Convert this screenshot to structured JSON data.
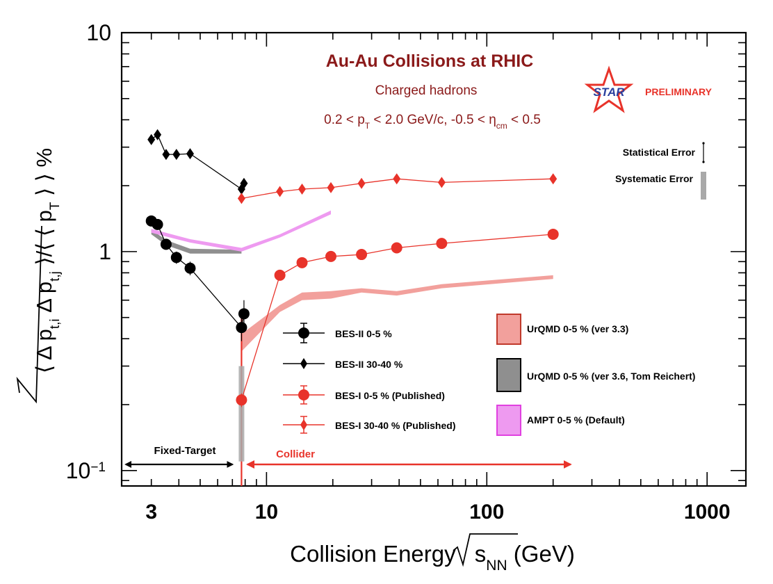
{
  "chart_data": {
    "type": "scatter",
    "title": "Au-Au Collisions at RHIC",
    "subtitle": "Charged hadrons",
    "cuts": {
      "a": "0.2 < p",
      "b": "T",
      "c": " < 2.0 GeV/c, -0.5 < η",
      "d": "cm",
      "e": " < 0.5"
    },
    "xlabel": {
      "main": "Collision Energy ",
      "sym": "s",
      "sub": "NN",
      "unit": " (GeV)"
    },
    "ylabel": {
      "p1": "⟨ Δ p",
      "p1s": "t,i",
      "p2": " Δ p",
      "p2s": "t,j",
      "p3": " ⟩/⟨ ⟨ p",
      "p3s": "T",
      "p4": " ⟩ ⟩ %"
    },
    "x_scale": "log",
    "y_scale": "log",
    "xlim": [
      2.2,
      1500
    ],
    "ylim": [
      0.085,
      10
    ],
    "x_ticks": [
      {
        "v": 3,
        "label": "3"
      },
      {
        "v": 10,
        "label": "10"
      },
      {
        "v": 100,
        "label": "100"
      },
      {
        "v": 1000,
        "label": "1000"
      }
    ],
    "y_ticks": [
      {
        "v": 10,
        "base": "10",
        "exp": ""
      },
      {
        "v": 1,
        "base": "1",
        "exp": ""
      },
      {
        "v": 0.1,
        "base": "10",
        "exp": "−1"
      }
    ],
    "colors": {
      "black": "#000000",
      "red": "#e8332a",
      "urqmd33": "#f2a09c",
      "urqmd36": "#8f8f8f",
      "ampt": "#ee9af0",
      "title": "#8b1a1a"
    },
    "series": [
      {
        "name": "BES-II 0-5 %",
        "marker": "circle",
        "color": "#000000",
        "x": [
          3.0,
          3.2,
          3.5,
          3.9,
          4.5,
          7.7,
          7.9
        ],
        "y": [
          1.38,
          1.33,
          1.08,
          0.94,
          0.84,
          0.45,
          0.52
        ],
        "err": [
          0.05,
          0.05,
          0.06,
          0.06,
          0.06,
          0.06,
          0.08
        ]
      },
      {
        "name": "BES-II 30-40 %",
        "marker": "diamond",
        "color": "#000000",
        "x": [
          3.0,
          3.2,
          3.5,
          3.9,
          4.5,
          7.7,
          7.9
        ],
        "y": [
          3.25,
          3.42,
          2.78,
          2.78,
          2.8,
          1.93,
          2.05
        ],
        "err": [
          0.08,
          0.08,
          0.08,
          0.08,
          0.08,
          0.08,
          0.08
        ]
      },
      {
        "name": "BES-I 0-5 % (Published)",
        "marker": "circle",
        "color": "#e8332a",
        "x": [
          7.7,
          11.5,
          14.5,
          19.6,
          27,
          39,
          62.4,
          200
        ],
        "y": [
          0.21,
          0.78,
          0.89,
          0.95,
          0.97,
          1.04,
          1.09,
          1.2
        ],
        "err": [
          0.015,
          0.03,
          0.03,
          0.03,
          0.03,
          0.03,
          0.03,
          0.03
        ]
      },
      {
        "name": "BES-I 30-40 % (Published)",
        "marker": "diamond",
        "color": "#e8332a",
        "x": [
          7.7,
          11.5,
          14.5,
          19.6,
          27,
          39,
          62.4,
          200
        ],
        "y": [
          1.75,
          1.88,
          1.93,
          1.96,
          2.05,
          2.15,
          2.07,
          2.15
        ],
        "err": [
          0.03,
          0.03,
          0.03,
          0.03,
          0.03,
          0.03,
          0.03,
          0.03
        ]
      }
    ],
    "bands": [
      {
        "name": "UrQMD 0-5 % (ver 3.3)",
        "color": "#f2a09c",
        "stroke": "#c0392b",
        "x": [
          7.7,
          11.5,
          14.5,
          19.6,
          27,
          39,
          62.4,
          200
        ],
        "lo": [
          0.35,
          0.53,
          0.6,
          0.61,
          0.65,
          0.63,
          0.68,
          0.75
        ],
        "hi": [
          0.42,
          0.57,
          0.65,
          0.66,
          0.68,
          0.66,
          0.71,
          0.78
        ]
      },
      {
        "name": "UrQMD 0-5 % (ver 3.6, Tom Reichert)",
        "color": "#8f8f8f",
        "stroke": "#000000",
        "x": [
          3.0,
          3.5,
          4.5,
          7.7
        ],
        "lo": [
          1.2,
          1.07,
          0.98,
          0.98
        ],
        "hi": [
          1.26,
          1.13,
          1.03,
          1.02
        ]
      },
      {
        "name": "AMPT 0-5 % (Default)",
        "color": "#ee9af0",
        "stroke": "#e040e0",
        "x": [
          3.0,
          4.5,
          7.7,
          11.5,
          19.6
        ],
        "lo": [
          1.22,
          1.1,
          1.0,
          1.16,
          1.48
        ],
        "hi": [
          1.27,
          1.14,
          1.04,
          1.2,
          1.54
        ]
      }
    ],
    "legend_left": [
      "BES-II 0-5 %",
      "BES-II 30-40 %",
      "BES-I 0-5 % (Published)",
      "BES-I 30-40 % (Published)"
    ],
    "legend_right": [
      "UrQMD 0-5 % (ver 3.3)",
      "UrQMD 0-5 % (ver 3.6, Tom Reichert)",
      "AMPT 0-5 % (Default)"
    ],
    "error_legend": {
      "stat": "Statistical Error",
      "sys": "Systematic Error"
    },
    "logo": {
      "star": "STAR",
      "prelim": "PRELIMINARY"
    },
    "annotations": {
      "fixed_target": "Fixed-Target",
      "collider": "Collider"
    },
    "regions": {
      "fixed_target_x": [
        2.3,
        7.0
      ],
      "collider_x": [
        8.2,
        240
      ],
      "divider_x": 7.7
    }
  }
}
